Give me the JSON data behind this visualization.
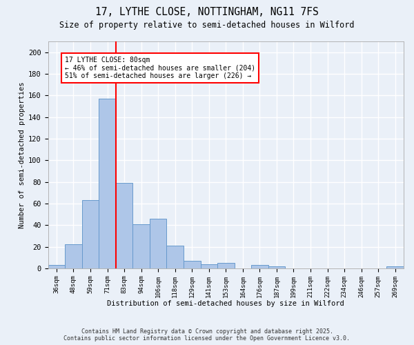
{
  "title1": "17, LYTHE CLOSE, NOTTINGHAM, NG11 7FS",
  "title2": "Size of property relative to semi-detached houses in Wilford",
  "xlabel": "Distribution of semi-detached houses by size in Wilford",
  "ylabel": "Number of semi-detached properties",
  "bin_labels": [
    "36sqm",
    "48sqm",
    "59sqm",
    "71sqm",
    "83sqm",
    "94sqm",
    "106sqm",
    "118sqm",
    "129sqm",
    "141sqm",
    "153sqm",
    "164sqm",
    "176sqm",
    "187sqm",
    "199sqm",
    "211sqm",
    "222sqm",
    "234sqm",
    "246sqm",
    "257sqm",
    "269sqm"
  ],
  "bar_values": [
    3,
    22,
    63,
    157,
    79,
    41,
    46,
    21,
    7,
    4,
    5,
    0,
    3,
    2,
    0,
    0,
    0,
    0,
    0,
    0,
    2
  ],
  "bar_color": "#aec6e8",
  "bar_edge_color": "#6699cc",
  "ylim": [
    0,
    210
  ],
  "yticks": [
    0,
    20,
    40,
    60,
    80,
    100,
    120,
    140,
    160,
    180,
    200
  ],
  "vline_color": "red",
  "vline_pos": 3.5,
  "annotation_title": "17 LYTHE CLOSE: 80sqm",
  "annotation_line1": "← 46% of semi-detached houses are smaller (204)",
  "annotation_line2": "51% of semi-detached houses are larger (226) →",
  "annotation_box_color": "red",
  "footer1": "Contains HM Land Registry data © Crown copyright and database right 2025.",
  "footer2": "Contains public sector information licensed under the Open Government Licence v3.0.",
  "bg_color": "#eaf0f8",
  "plot_bg_color": "#eaf0f8",
  "grid_color": "#ffffff"
}
